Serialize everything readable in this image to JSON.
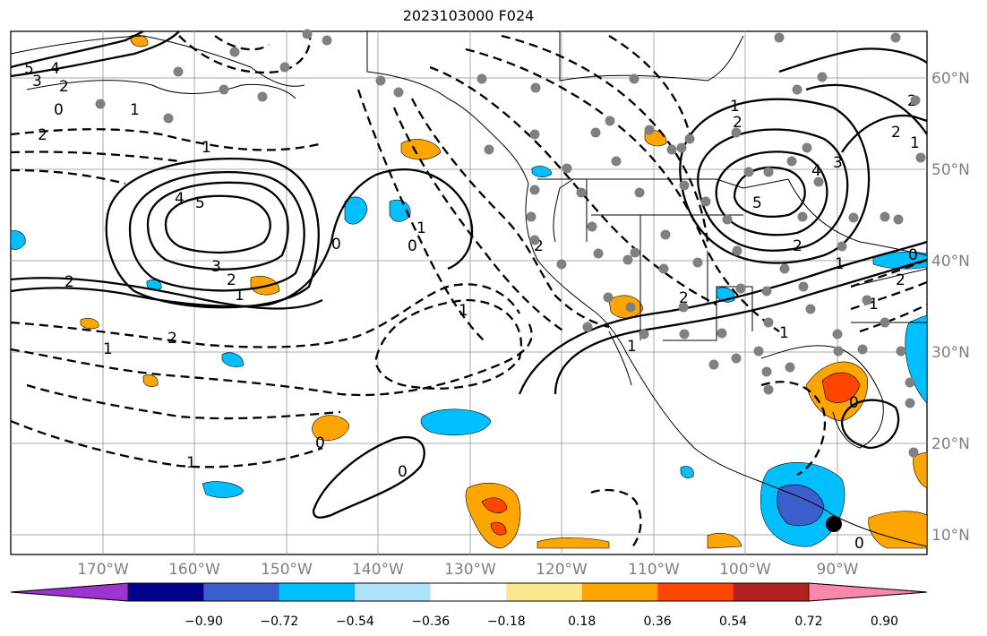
{
  "title": "2023103000 F024",
  "lon_labels": [
    "170°W",
    "160°W",
    "150°W",
    "140°W",
    "130°W",
    "120°W",
    "110°W",
    "100°W",
    "90°W"
  ],
  "lat_labels": [
    "60°N",
    "50°N",
    "40°N",
    "30°N",
    "20°N",
    "10°N"
  ],
  "colorbar": {
    "colors": [
      "#9d33d0",
      "#00008b",
      "#3a5fcd",
      "#00bfff",
      "#aee1fb",
      "#ffffff",
      "#fce88c",
      "#ffa500",
      "#ff4500",
      "#b22222",
      "#f987aa"
    ],
    "labels": [
      "−0.90",
      "−0.72",
      "−0.54",
      "−0.36",
      "−0.18",
      "0.18",
      "0.36",
      "0.54",
      "0.72",
      "0.90"
    ]
  },
  "contour_labels": [
    "5",
    "4",
    "3",
    "2",
    "1",
    "0",
    "2",
    "1",
    "4",
    "5",
    "3",
    "2",
    "1",
    "2",
    "2",
    "1",
    "1",
    "0",
    "0",
    "1",
    "2",
    "2",
    "1",
    "0",
    "0",
    "1",
    "2",
    "3",
    "4",
    "5",
    "2",
    "1",
    "2",
    "1",
    "2",
    "1",
    "0",
    "2",
    "0",
    "1",
    "0",
    "1"
  ],
  "marker_colors": {
    "station": "#808080",
    "highlight": "#000000"
  }
}
